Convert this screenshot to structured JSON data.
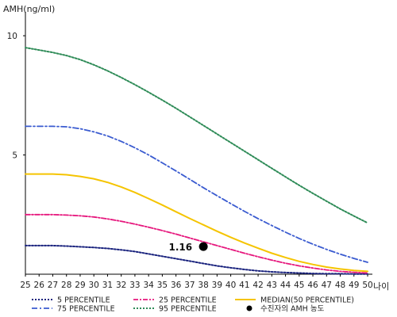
{
  "chart_data": {
    "type": "line",
    "ylabel": "AMH(ng/ml)",
    "xlabel": "나이",
    "xlim": [
      25,
      50
    ],
    "ylim": [
      0,
      11
    ],
    "x_ticks": [
      25,
      26,
      27,
      28,
      29,
      30,
      31,
      32,
      33,
      34,
      35,
      36,
      37,
      38,
      39,
      40,
      41,
      42,
      43,
      44,
      45,
      46,
      47,
      48,
      49,
      50
    ],
    "y_ticks": [
      5,
      10
    ],
    "grid": false,
    "legend_position": "bottom",
    "series": [
      {
        "name": "5 PERCENTILE",
        "color": "#1a237e",
        "dash": "2,2",
        "width": 2,
        "x": [
          25,
          26,
          27,
          28,
          29,
          30,
          31,
          32,
          33,
          34,
          35,
          36,
          37,
          38,
          39,
          40,
          41,
          42,
          43,
          44,
          45,
          46,
          47,
          48,
          49,
          50
        ],
        "values": [
          1.2,
          1.2,
          1.2,
          1.18,
          1.15,
          1.12,
          1.08,
          1.02,
          0.95,
          0.85,
          0.75,
          0.65,
          0.55,
          0.45,
          0.35,
          0.27,
          0.2,
          0.14,
          0.1,
          0.07,
          0.05,
          0.03,
          0.02,
          0.02,
          0.01,
          0.01
        ]
      },
      {
        "name": "25 PERCENTILE",
        "color": "#e6177d",
        "dash": "6,2,2,2",
        "width": 1.8,
        "x": [
          25,
          26,
          27,
          28,
          29,
          30,
          31,
          32,
          33,
          34,
          35,
          36,
          37,
          38,
          39,
          40,
          41,
          42,
          43,
          44,
          45,
          46,
          47,
          48,
          49,
          50
        ],
        "values": [
          2.5,
          2.5,
          2.5,
          2.48,
          2.45,
          2.4,
          2.32,
          2.22,
          2.1,
          1.97,
          1.83,
          1.68,
          1.52,
          1.36,
          1.2,
          1.04,
          0.88,
          0.73,
          0.59,
          0.46,
          0.35,
          0.26,
          0.18,
          0.12,
          0.08,
          0.05
        ]
      },
      {
        "name": "MEDIAN(50 PERCENTILE)",
        "color": "#f5c400",
        "dash": "",
        "width": 2,
        "x": [
          25,
          26,
          27,
          28,
          29,
          30,
          31,
          32,
          33,
          34,
          35,
          36,
          37,
          38,
          39,
          40,
          41,
          42,
          43,
          44,
          45,
          46,
          47,
          48,
          49,
          50
        ],
        "values": [
          4.2,
          4.2,
          4.2,
          4.17,
          4.1,
          4.0,
          3.85,
          3.66,
          3.43,
          3.17,
          2.9,
          2.62,
          2.34,
          2.07,
          1.8,
          1.55,
          1.31,
          1.09,
          0.88,
          0.7,
          0.54,
          0.41,
          0.3,
          0.22,
          0.16,
          0.12
        ]
      },
      {
        "name": "75 PERCENTILE",
        "color": "#3a5bd0",
        "dash": "7,3,2,3",
        "width": 1.8,
        "x": [
          25,
          26,
          27,
          28,
          29,
          30,
          31,
          32,
          33,
          34,
          35,
          36,
          37,
          38,
          39,
          40,
          41,
          42,
          43,
          44,
          45,
          46,
          47,
          48,
          49,
          50
        ],
        "values": [
          6.2,
          6.2,
          6.2,
          6.18,
          6.1,
          5.97,
          5.8,
          5.57,
          5.3,
          5.0,
          4.67,
          4.33,
          3.98,
          3.63,
          3.29,
          2.96,
          2.64,
          2.33,
          2.04,
          1.76,
          1.5,
          1.26,
          1.04,
          0.84,
          0.66,
          0.5
        ]
      },
      {
        "name": "95 PERCENTILE",
        "color": "#2e8b57",
        "dash": "2,2",
        "width": 2,
        "x": [
          25,
          26,
          27,
          28,
          29,
          30,
          31,
          32,
          33,
          34,
          35,
          36,
          37,
          38,
          39,
          40,
          41,
          42,
          43,
          44,
          45,
          46,
          47,
          48,
          49,
          50
        ],
        "values": [
          9.5,
          9.4,
          9.3,
          9.17,
          9.0,
          8.78,
          8.53,
          8.25,
          7.95,
          7.63,
          7.3,
          6.96,
          6.6,
          6.24,
          5.88,
          5.52,
          5.16,
          4.8,
          4.44,
          4.08,
          3.73,
          3.39,
          3.06,
          2.74,
          2.44,
          2.15
        ]
      }
    ],
    "points": [
      {
        "name": "수진자의 AMH 농도",
        "x": 38,
        "y": 1.16,
        "label": "1.16",
        "color": "#000000"
      }
    ],
    "legend": [
      {
        "series": "5 PERCENTILE"
      },
      {
        "series": "25 PERCENTILE"
      },
      {
        "series": "MEDIAN(50 PERCENTILE)"
      },
      {
        "series": "75 PERCENTILE"
      },
      {
        "series": "95 PERCENTILE"
      },
      {
        "point": "수진자의 AMH 농도"
      }
    ]
  }
}
